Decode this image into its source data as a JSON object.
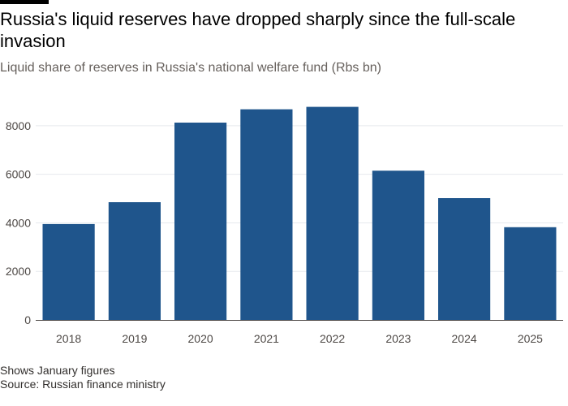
{
  "title": "Russia's liquid reserves have dropped sharply since the full-scale invasion",
  "subtitle": "Liquid share of reserves in Russia's national welfare fund (Rbs bn)",
  "footer": {
    "note": "Shows January figures",
    "source": "Source: Russian finance ministry"
  },
  "colors": {
    "bar": "#1f558c",
    "grid": "#e6e9ee",
    "axis": "#4d4845"
  },
  "chart_data": {
    "type": "bar",
    "categories": [
      "2018",
      "2019",
      "2020",
      "2021",
      "2022",
      "2023",
      "2024",
      "2025"
    ],
    "values": [
      3950,
      4850,
      8130,
      8680,
      8780,
      6150,
      5020,
      3820
    ],
    "yticks": [
      0,
      2000,
      4000,
      6000,
      8000
    ],
    "ytick_labels": [
      "0",
      "2000",
      "4000",
      "6000",
      "8000"
    ],
    "ylim": [
      0,
      9000
    ],
    "xlabel": "",
    "ylabel": "",
    "grid": true,
    "legend": "none"
  }
}
